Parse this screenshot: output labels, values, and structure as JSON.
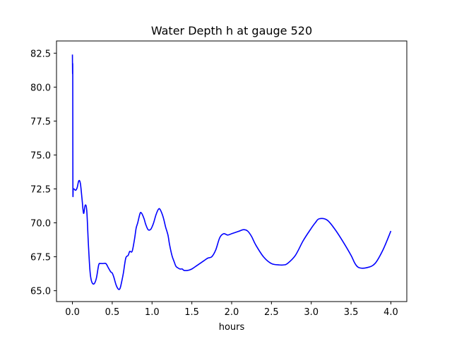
{
  "chart_data": {
    "type": "line",
    "title": "Water Depth h at gauge 520",
    "xlabel": "hours",
    "ylabel": "",
    "xlim": [
      -0.2,
      4.2
    ],
    "ylim": [
      64.2,
      83.4
    ],
    "grid": false,
    "x_ticks": [
      0.0,
      0.5,
      1.0,
      1.5,
      2.0,
      2.5,
      3.0,
      3.5,
      4.0
    ],
    "x_tick_labels": [
      "0.0",
      "0.5",
      "1.0",
      "1.5",
      "2.0",
      "2.5",
      "3.0",
      "3.5",
      "4.0"
    ],
    "y_ticks": [
      65.0,
      67.5,
      70.0,
      72.5,
      75.0,
      77.5,
      80.0,
      82.5
    ],
    "y_tick_labels": [
      "65.0",
      "67.5",
      "70.0",
      "72.5",
      "75.0",
      "77.5",
      "80.0",
      "82.5"
    ],
    "series": [
      {
        "color": "#0000ff",
        "x": [
          0.0,
          0.002,
          0.004,
          0.006,
          0.01,
          0.02,
          0.04,
          0.06,
          0.08,
          0.1,
          0.12,
          0.14,
          0.16,
          0.18,
          0.2,
          0.22,
          0.24,
          0.27,
          0.3,
          0.33,
          0.35,
          0.38,
          0.42,
          0.45,
          0.48,
          0.5,
          0.52,
          0.55,
          0.58,
          0.6,
          0.62,
          0.64,
          0.67,
          0.7,
          0.72,
          0.75,
          0.78,
          0.8,
          0.82,
          0.85,
          0.87,
          0.9,
          0.92,
          0.95,
          0.98,
          1.0,
          1.02,
          1.05,
          1.08,
          1.1,
          1.13,
          1.15,
          1.17,
          1.2,
          1.22,
          1.25,
          1.28,
          1.3,
          1.32,
          1.35,
          1.38,
          1.4,
          1.45,
          1.5,
          1.55,
          1.6,
          1.65,
          1.7,
          1.75,
          1.8,
          1.85,
          1.9,
          1.95,
          2.0,
          2.05,
          2.1,
          2.15,
          2.2,
          2.25,
          2.3,
          2.4,
          2.5,
          2.6,
          2.65,
          2.7,
          2.8,
          2.9,
          3.0,
          3.05,
          3.1,
          3.2,
          3.3,
          3.4,
          3.5,
          3.55,
          3.6,
          3.7,
          3.8,
          3.9,
          4.0
        ],
        "y": [
          82.4,
          81.0,
          81.2,
          72.6,
          72.5,
          72.5,
          72.4,
          72.6,
          73.1,
          72.9,
          71.8,
          70.7,
          71.3,
          70.9,
          68.5,
          66.5,
          65.7,
          65.5,
          65.9,
          66.9,
          67.0,
          67.0,
          67.0,
          66.7,
          66.4,
          66.3,
          66.0,
          65.4,
          65.1,
          65.2,
          65.7,
          66.3,
          67.4,
          67.6,
          67.9,
          67.9,
          68.8,
          69.6,
          70.0,
          70.7,
          70.7,
          70.3,
          69.9,
          69.5,
          69.5,
          69.7,
          70.0,
          70.6,
          71.0,
          71.0,
          70.6,
          70.2,
          69.7,
          69.1,
          68.4,
          67.6,
          67.1,
          66.8,
          66.7,
          66.6,
          66.6,
          66.5,
          66.5,
          66.6,
          66.8,
          67.0,
          67.2,
          67.4,
          67.5,
          68.0,
          68.9,
          69.2,
          69.1,
          69.2,
          69.3,
          69.4,
          69.5,
          69.4,
          69.0,
          68.4,
          67.5,
          67.0,
          66.9,
          66.9,
          67.0,
          67.6,
          68.7,
          69.6,
          70.0,
          70.3,
          70.2,
          69.5,
          68.6,
          67.6,
          67.0,
          66.7,
          66.7,
          67.0,
          68.0,
          69.4
        ]
      }
    ]
  }
}
